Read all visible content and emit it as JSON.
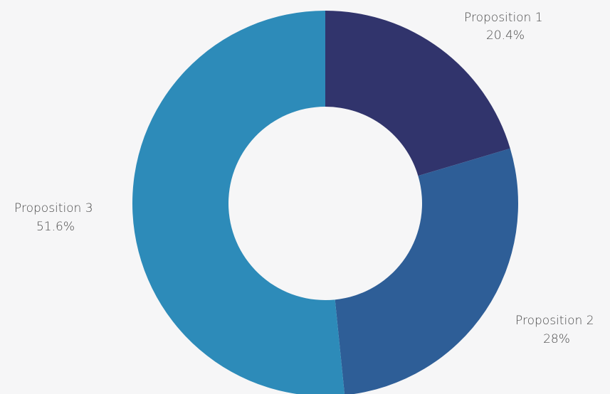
{
  "chart_data": {
    "type": "pie",
    "donut": true,
    "categories": [
      "Proposition 1",
      "Proposition 2",
      "Proposition 3"
    ],
    "values": [
      20.4,
      28,
      51.6
    ],
    "value_labels": [
      "20.4%",
      "28%",
      "51.6%"
    ],
    "colors": [
      "#31346c",
      "#2e5e97",
      "#2d8bb9"
    ],
    "background": "#f6f6f7",
    "legend": "none",
    "labels_placement": "outside"
  }
}
